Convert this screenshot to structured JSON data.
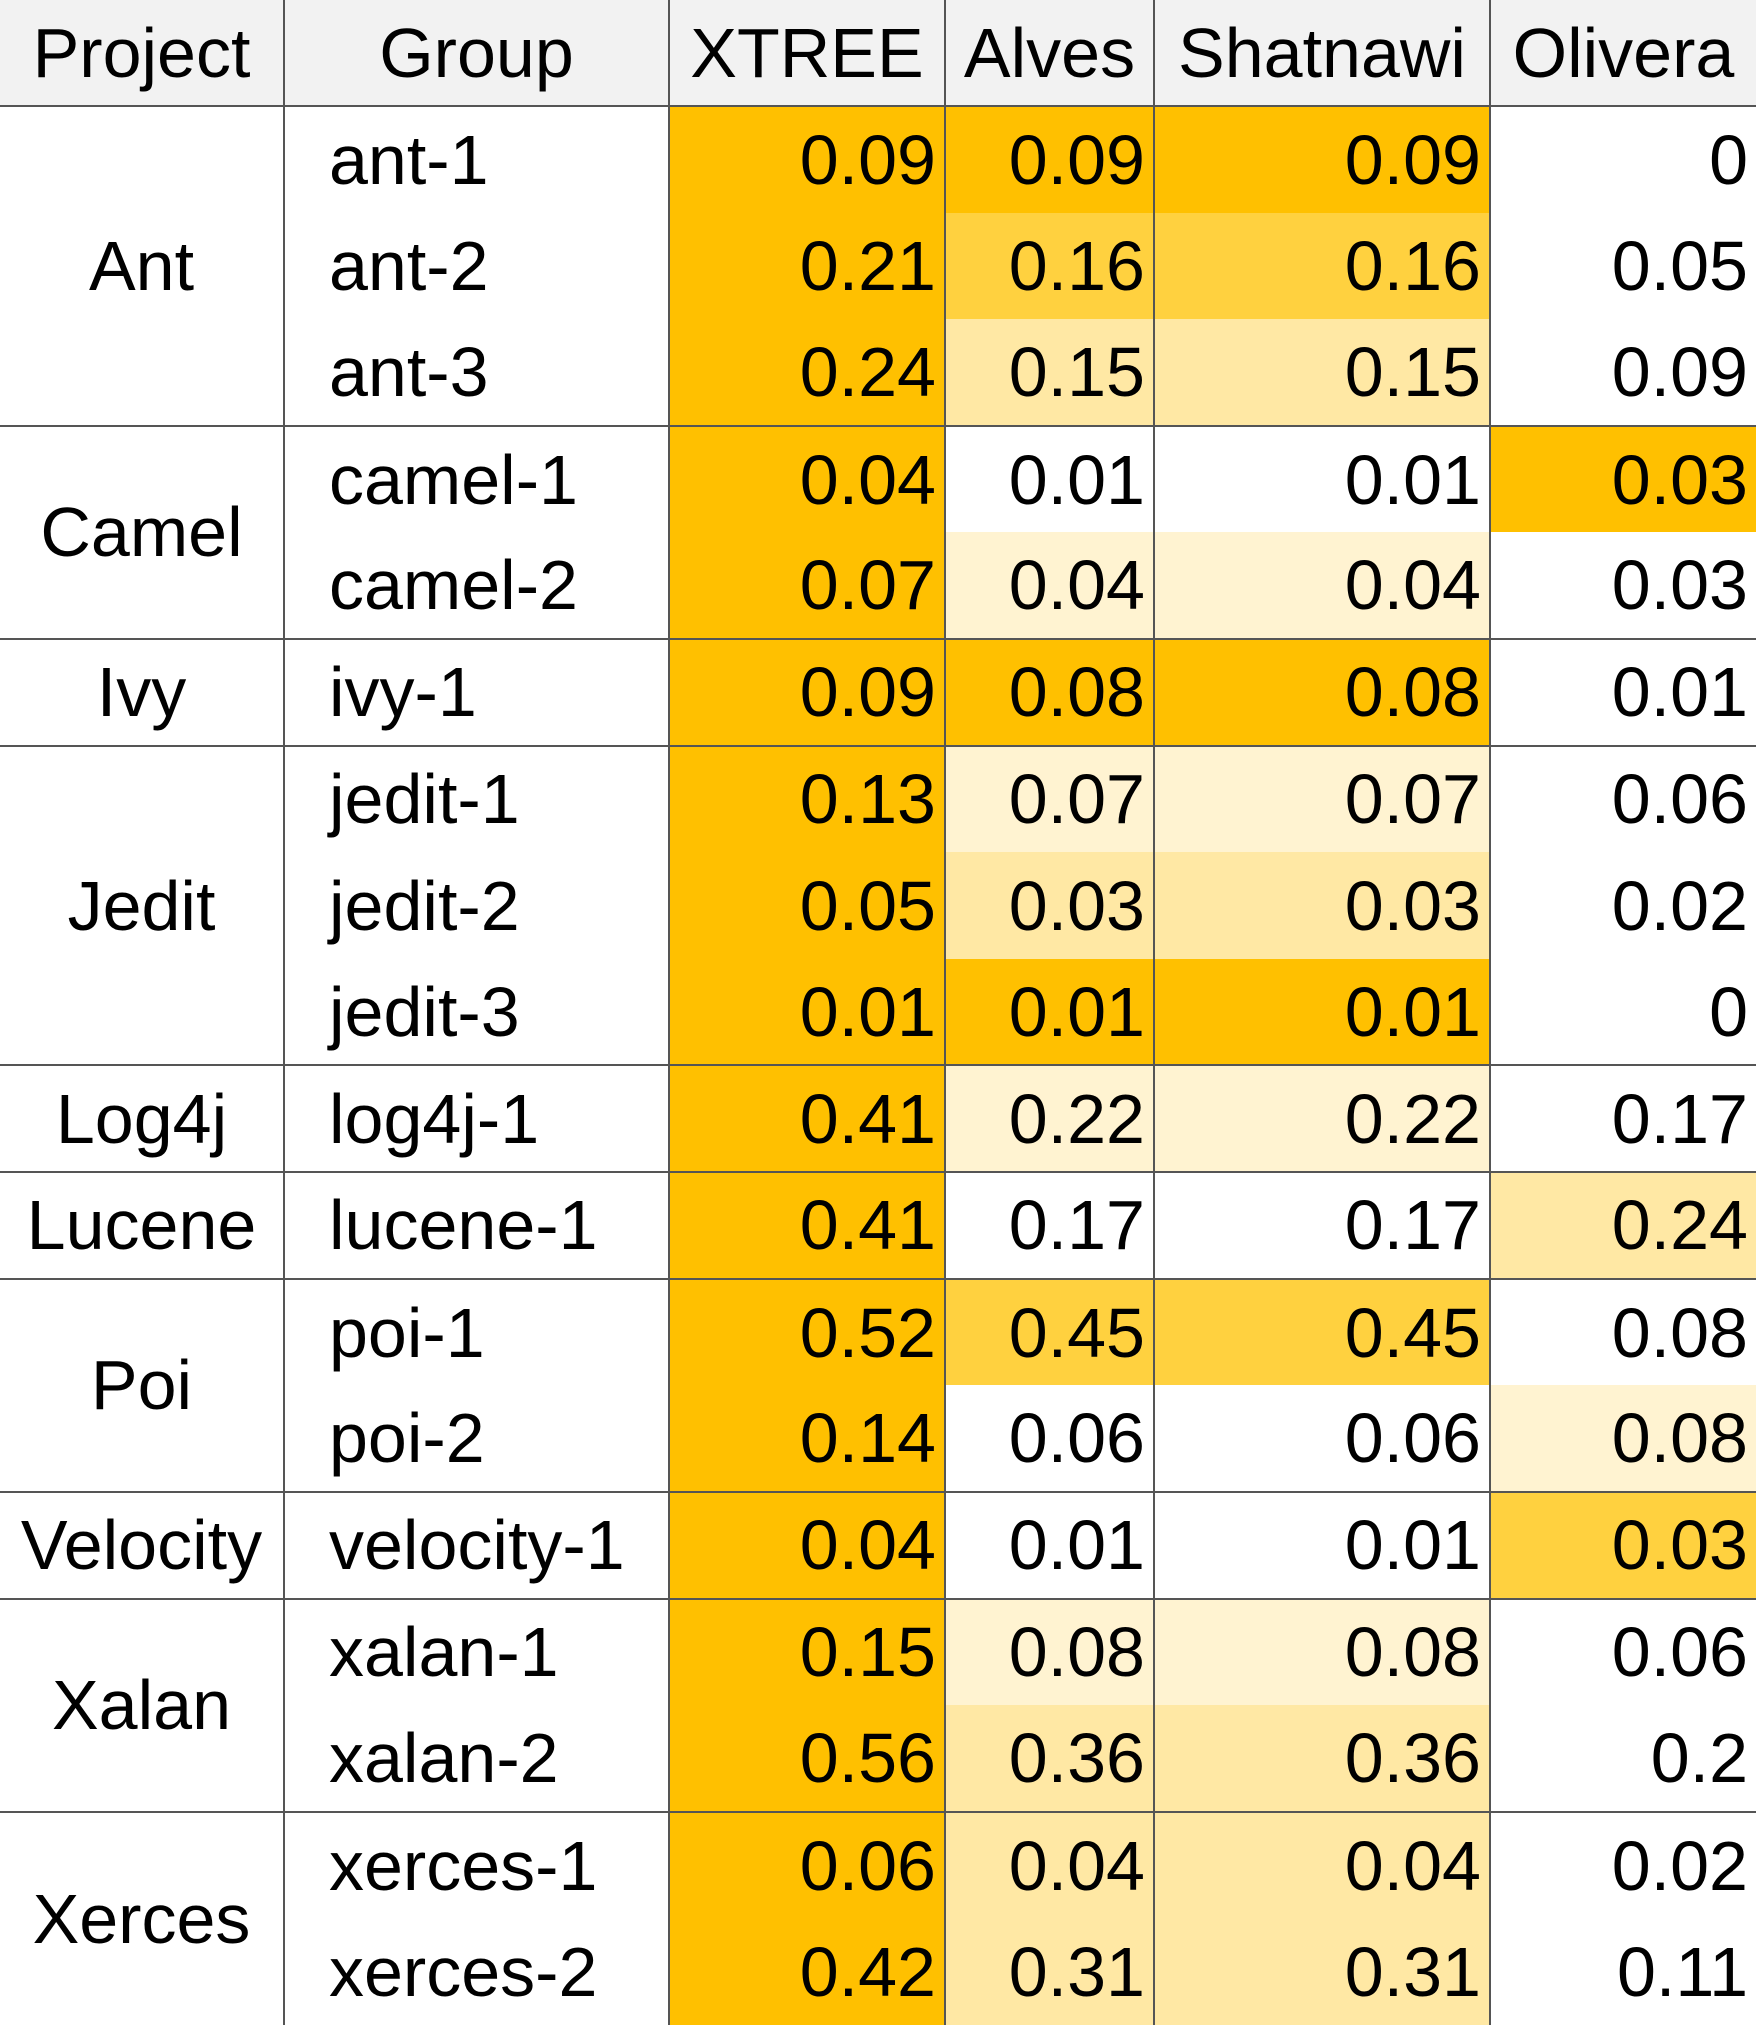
{
  "chart_data": {
    "type": "table",
    "columns": [
      "Project",
      "Group",
      "XTREE",
      "Alves",
      "Shatnawi",
      "Olivera"
    ],
    "heat_colors": [
      "#ffffff",
      "#fff3d1",
      "#ffe8a4",
      "#ffdc73",
      "#ffd13f",
      "#ffc000"
    ],
    "rows": [
      {
        "project": "Ant",
        "group": "ant-1",
        "values": [
          "0.09",
          "0.09",
          "0.09",
          "0"
        ],
        "heat": [
          5,
          5,
          5,
          0
        ]
      },
      {
        "project": "Ant",
        "group": "ant-2",
        "values": [
          "0.21",
          "0.16",
          "0.16",
          "0.05"
        ],
        "heat": [
          5,
          4,
          4,
          0
        ]
      },
      {
        "project": "Ant",
        "group": "ant-3",
        "values": [
          "0.24",
          "0.15",
          "0.15",
          "0.09"
        ],
        "heat": [
          5,
          2,
          2,
          0
        ]
      },
      {
        "project": "Camel",
        "group": "camel-1",
        "values": [
          "0.04",
          "0.01",
          "0.01",
          "0.03"
        ],
        "heat": [
          5,
          0,
          0,
          5
        ]
      },
      {
        "project": "Camel",
        "group": "camel-2",
        "values": [
          "0.07",
          "0.04",
          "0.04",
          "0.03"
        ],
        "heat": [
          5,
          1,
          1,
          0
        ]
      },
      {
        "project": "Ivy",
        "group": "ivy-1",
        "values": [
          "0.09",
          "0.08",
          "0.08",
          "0.01"
        ],
        "heat": [
          5,
          5,
          5,
          0
        ]
      },
      {
        "project": "Jedit",
        "group": "jedit-1",
        "values": [
          "0.13",
          "0.07",
          "0.07",
          "0.06"
        ],
        "heat": [
          5,
          1,
          1,
          0
        ]
      },
      {
        "project": "Jedit",
        "group": "jedit-2",
        "values": [
          "0.05",
          "0.03",
          "0.03",
          "0.02"
        ],
        "heat": [
          5,
          2,
          2,
          0
        ]
      },
      {
        "project": "Jedit",
        "group": "jedit-3",
        "values": [
          "0.01",
          "0.01",
          "0.01",
          "0"
        ],
        "heat": [
          5,
          5,
          5,
          0
        ]
      },
      {
        "project": "Log4j",
        "group": "log4j-1",
        "values": [
          "0.41",
          "0.22",
          "0.22",
          "0.17"
        ],
        "heat": [
          5,
          1,
          1,
          0
        ]
      },
      {
        "project": "Lucene",
        "group": "lucene-1",
        "values": [
          "0.41",
          "0.17",
          "0.17",
          "0.24"
        ],
        "heat": [
          5,
          0,
          0,
          2
        ]
      },
      {
        "project": "Poi",
        "group": "poi-1",
        "values": [
          "0.52",
          "0.45",
          "0.45",
          "0.08"
        ],
        "heat": [
          5,
          4,
          4,
          0
        ]
      },
      {
        "project": "Poi",
        "group": "poi-2",
        "values": [
          "0.14",
          "0.06",
          "0.06",
          "0.08"
        ],
        "heat": [
          5,
          0,
          0,
          1
        ]
      },
      {
        "project": "Velocity",
        "group": "velocity-1",
        "values": [
          "0.04",
          "0.01",
          "0.01",
          "0.03"
        ],
        "heat": [
          5,
          0,
          0,
          4
        ]
      },
      {
        "project": "Xalan",
        "group": "xalan-1",
        "values": [
          "0.15",
          "0.08",
          "0.08",
          "0.06"
        ],
        "heat": [
          5,
          1,
          1,
          0
        ]
      },
      {
        "project": "Xalan",
        "group": "xalan-2",
        "values": [
          "0.56",
          "0.36",
          "0.36",
          "0.2"
        ],
        "heat": [
          5,
          2,
          2,
          0
        ]
      },
      {
        "project": "Xerces",
        "group": "xerces-1",
        "values": [
          "0.06",
          "0.04",
          "0.04",
          "0.02"
        ],
        "heat": [
          5,
          2,
          2,
          0
        ]
      },
      {
        "project": "Xerces",
        "group": "xerces-2",
        "values": [
          "0.42",
          "0.31",
          "0.31",
          "0.11"
        ],
        "heat": [
          5,
          2,
          2,
          0
        ]
      }
    ]
  }
}
